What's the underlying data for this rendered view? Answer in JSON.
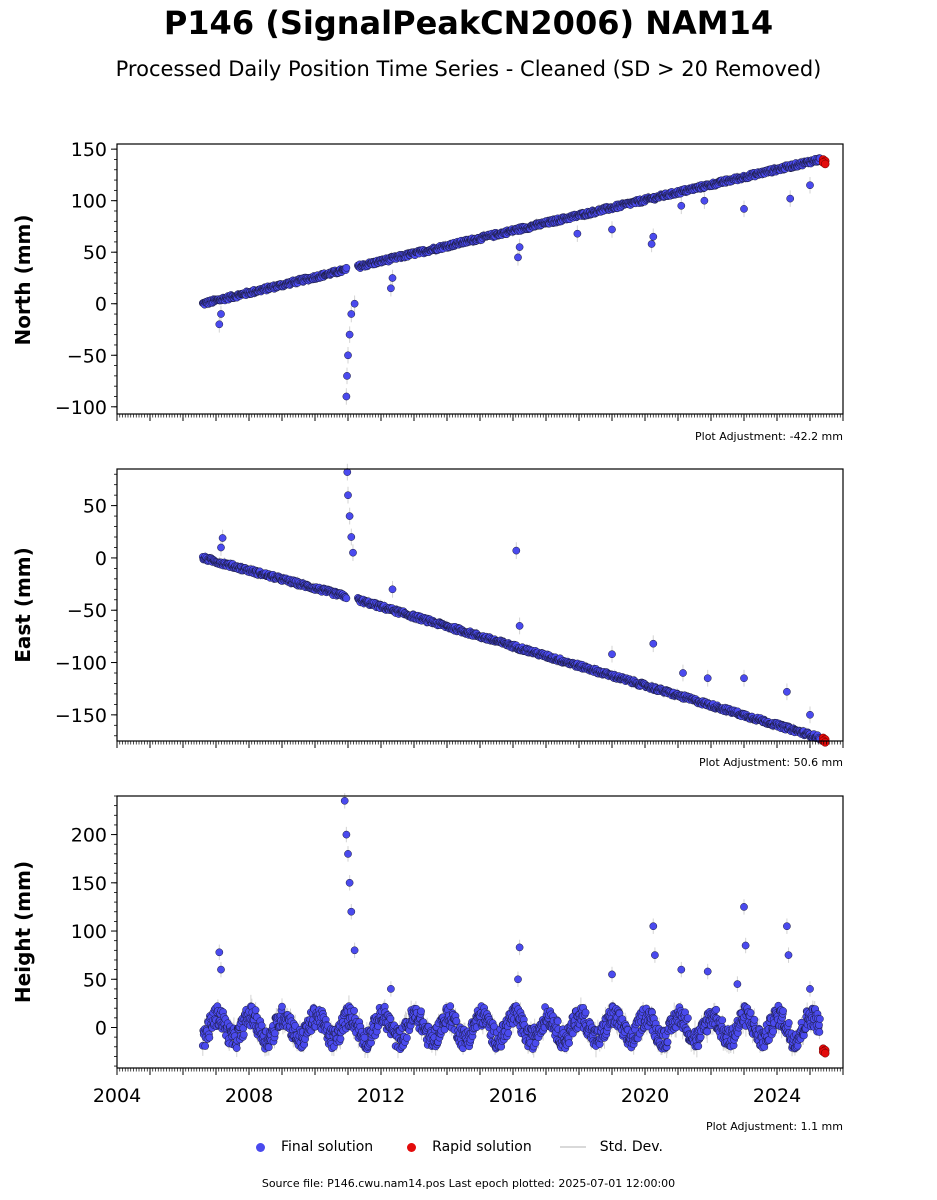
{
  "title": "P146 (SignalPeakCN2006) NAM14",
  "subtitle": "Processed Daily Position Time Series - Cleaned (SD > 20 Removed)",
  "legend": {
    "final": "Final solution",
    "rapid": "Rapid solution",
    "std": "Std. Dev."
  },
  "footer": "Source file: P146.cwu.nam14.pos  Last epoch plotted: 2025-07-01 12:00:00",
  "colors": {
    "final": "#4a4aee",
    "rapid": "#e30b0b",
    "std": "#d3d3d3",
    "marker_edge": "#1a1a3a"
  },
  "chart_data": [
    {
      "type": "scatter",
      "ylabel": "North (mm)",
      "xlim": [
        2004,
        2026
      ],
      "ylim": [
        -107,
        155
      ],
      "yticks": [
        -100,
        -50,
        0,
        50,
        100,
        150
      ],
      "ytick_labels": [
        "−100",
        "−50",
        "0",
        "50",
        "100",
        "150"
      ],
      "adjustment": "Plot Adjustment: -42.2 mm",
      "show_xticklabels": false,
      "trend_segments": [
        {
          "x": [
            2006.6,
            2010.95
          ],
          "y": [
            0,
            33
          ]
        },
        {
          "x": [
            2011.3,
            2025.3
          ],
          "y": [
            36,
            140
          ]
        }
      ],
      "outliers": [
        {
          "x": 2007.1,
          "y": -20
        },
        {
          "x": 2007.15,
          "y": -10
        },
        {
          "x": 2010.95,
          "y": -90
        },
        {
          "x": 2010.97,
          "y": -70
        },
        {
          "x": 2011.0,
          "y": -50
        },
        {
          "x": 2011.05,
          "y": -30
        },
        {
          "x": 2011.1,
          "y": -10
        },
        {
          "x": 2011.2,
          "y": 0
        },
        {
          "x": 2012.3,
          "y": 15
        },
        {
          "x": 2012.35,
          "y": 25
        },
        {
          "x": 2016.15,
          "y": 45
        },
        {
          "x": 2016.2,
          "y": 55
        },
        {
          "x": 2017.95,
          "y": 68
        },
        {
          "x": 2019.0,
          "y": 72
        },
        {
          "x": 2020.2,
          "y": 58
        },
        {
          "x": 2020.25,
          "y": 65
        },
        {
          "x": 2021.1,
          "y": 95
        },
        {
          "x": 2021.8,
          "y": 100
        },
        {
          "x": 2023.0,
          "y": 92
        },
        {
          "x": 2024.4,
          "y": 102
        },
        {
          "x": 2025.0,
          "y": 115
        }
      ],
      "rapid": [
        {
          "x": 2025.4,
          "y": 140
        }
      ]
    },
    {
      "type": "scatter",
      "ylabel": "East (mm)",
      "xlim": [
        2004,
        2026
      ],
      "ylim": [
        -175,
        85
      ],
      "yticks": [
        -150,
        -100,
        -50,
        0,
        50
      ],
      "ytick_labels": [
        "−150",
        "−100",
        "−50",
        "0",
        "50"
      ],
      "adjustment": "Plot Adjustment: 50.6 mm",
      "show_xticklabels": false,
      "trend_segments": [
        {
          "x": [
            2006.6,
            2010.95
          ],
          "y": [
            0,
            -37
          ]
        },
        {
          "x": [
            2011.3,
            2025.3
          ],
          "y": [
            -40,
            -172
          ]
        }
      ],
      "outliers": [
        {
          "x": 2007.2,
          "y": 19
        },
        {
          "x": 2007.15,
          "y": 10
        },
        {
          "x": 2010.98,
          "y": 82
        },
        {
          "x": 2011.0,
          "y": 60
        },
        {
          "x": 2011.05,
          "y": 40
        },
        {
          "x": 2011.1,
          "y": 20
        },
        {
          "x": 2011.15,
          "y": 5
        },
        {
          "x": 2012.35,
          "y": -30
        },
        {
          "x": 2016.1,
          "y": 7
        },
        {
          "x": 2016.2,
          "y": -65
        },
        {
          "x": 2019.0,
          "y": -92
        },
        {
          "x": 2020.25,
          "y": -82
        },
        {
          "x": 2021.15,
          "y": -110
        },
        {
          "x": 2021.9,
          "y": -115
        },
        {
          "x": 2023.0,
          "y": -115
        },
        {
          "x": 2024.3,
          "y": -128
        },
        {
          "x": 2025.0,
          "y": -150
        }
      ],
      "rapid": [
        {
          "x": 2025.4,
          "y": -172
        }
      ]
    },
    {
      "type": "scatter",
      "ylabel": "Height (mm)",
      "xlim": [
        2004,
        2026
      ],
      "ylim": [
        -42,
        240
      ],
      "yticks": [
        0,
        50,
        100,
        150,
        200
      ],
      "ytick_labels": [
        "0",
        "50",
        "100",
        "150",
        "200"
      ],
      "xticks": [
        2004,
        2008,
        2012,
        2016,
        2020,
        2024
      ],
      "xtick_labels": [
        "2004",
        "2008",
        "2012",
        "2016",
        "2020",
        "2024"
      ],
      "adjustment": "Plot Adjustment: 1.1 mm",
      "show_xticklabels": true,
      "baseline": {
        "start": 2006.6,
        "end": 2025.3,
        "mean": 0,
        "amplitude": 12
      },
      "outliers": [
        {
          "x": 2007.1,
          "y": 78
        },
        {
          "x": 2007.15,
          "y": 60
        },
        {
          "x": 2010.9,
          "y": 235
        },
        {
          "x": 2010.95,
          "y": 200
        },
        {
          "x": 2011.0,
          "y": 180
        },
        {
          "x": 2011.05,
          "y": 150
        },
        {
          "x": 2011.1,
          "y": 120
        },
        {
          "x": 2011.2,
          "y": 80
        },
        {
          "x": 2012.3,
          "y": 40
        },
        {
          "x": 2016.2,
          "y": 83
        },
        {
          "x": 2016.15,
          "y": 50
        },
        {
          "x": 2019.0,
          "y": 55
        },
        {
          "x": 2020.25,
          "y": 105
        },
        {
          "x": 2020.3,
          "y": 75
        },
        {
          "x": 2021.1,
          "y": 60
        },
        {
          "x": 2021.9,
          "y": 58
        },
        {
          "x": 2022.8,
          "y": 45
        },
        {
          "x": 2023.0,
          "y": 125
        },
        {
          "x": 2023.05,
          "y": 85
        },
        {
          "x": 2024.3,
          "y": 105
        },
        {
          "x": 2024.35,
          "y": 75
        },
        {
          "x": 2025.0,
          "y": 40
        }
      ],
      "rapid": [
        {
          "x": 2025.4,
          "y": -22
        }
      ]
    }
  ]
}
